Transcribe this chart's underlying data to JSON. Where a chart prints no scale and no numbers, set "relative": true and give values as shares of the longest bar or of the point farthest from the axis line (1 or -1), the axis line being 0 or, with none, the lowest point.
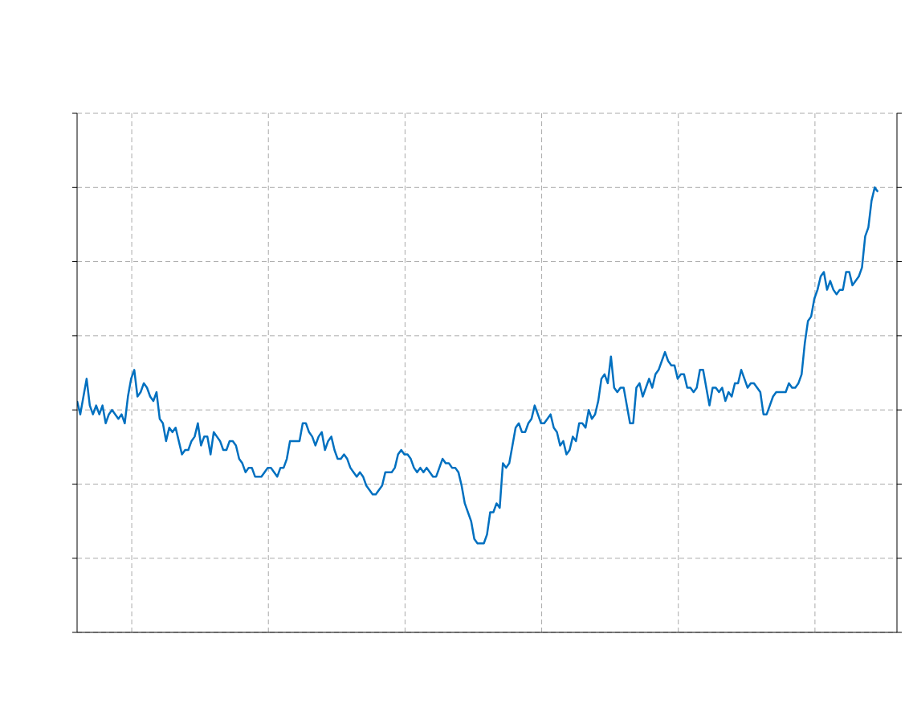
{
  "chart_data": {
    "type": "line",
    "relative": true,
    "grid": true,
    "marker": "none",
    "line_style": "solid",
    "categories": [
      null,
      null,
      null,
      null,
      null,
      null,
      null,
      null,
      null,
      null,
      null,
      null,
      null,
      null,
      null,
      null,
      null,
      null,
      null,
      null,
      null,
      null,
      null,
      null,
      null,
      null,
      null,
      null,
      null,
      null,
      null,
      null,
      null,
      null,
      null,
      null,
      null,
      null,
      null,
      null,
      null,
      null,
      null,
      null,
      null,
      null,
      null,
      null,
      null,
      null,
      null,
      null,
      null,
      null,
      null,
      null,
      null,
      null,
      null,
      null,
      null,
      null,
      null,
      null,
      null,
      null,
      null,
      null,
      null,
      null,
      null,
      null,
      null,
      null,
      null,
      null,
      null,
      null,
      null,
      null,
      null,
      null,
      null,
      null,
      null,
      null,
      null,
      null,
      null,
      null,
      null,
      null,
      null,
      null,
      null,
      null,
      null,
      null,
      null,
      null,
      null,
      null,
      null,
      null,
      null,
      null,
      null,
      null,
      null,
      null,
      null,
      null,
      null,
      null,
      null,
      null,
      null,
      null,
      null,
      null,
      null,
      null,
      null,
      null,
      null,
      null,
      null,
      null,
      null,
      null,
      null,
      null,
      null,
      null,
      null,
      null,
      null,
      null,
      null,
      null,
      null,
      null,
      null,
      null,
      null,
      null,
      null,
      null,
      null,
      null,
      null,
      null,
      null,
      null,
      null,
      null,
      null,
      null,
      null,
      null,
      null,
      null,
      null,
      null,
      null,
      null,
      null,
      null,
      null,
      null,
      null,
      null,
      null,
      null,
      null,
      null,
      null,
      null,
      null,
      null,
      null,
      null,
      null,
      null,
      null,
      null,
      null,
      null,
      null,
      null,
      null,
      null,
      null,
      null,
      null,
      null,
      null,
      null,
      null,
      null,
      null,
      null,
      null,
      null,
      null,
      null,
      null,
      null,
      null,
      null,
      null,
      null,
      null,
      null,
      null,
      null,
      null,
      null,
      null,
      null,
      null,
      null,
      null,
      null,
      null,
      null,
      null,
      null,
      null,
      null,
      null,
      null,
      null,
      null,
      null,
      null,
      null,
      null,
      null,
      null,
      null,
      null,
      null,
      null,
      null,
      null,
      null,
      null,
      null,
      null,
      null,
      null,
      null,
      null,
      null,
      null,
      null,
      null,
      null
    ],
    "series": [
      {
        "color": "#0070c0",
        "values": [
          0.52,
          0.49,
          0.53,
          0.57,
          0.51,
          0.49,
          0.51,
          0.49,
          0.51,
          0.47,
          0.49,
          0.5,
          0.49,
          0.48,
          0.49,
          0.47,
          0.53,
          0.57,
          0.59,
          0.53,
          0.54,
          0.56,
          0.55,
          0.53,
          0.52,
          0.54,
          0.48,
          0.47,
          0.43,
          0.46,
          0.45,
          0.46,
          0.43,
          0.4,
          0.41,
          0.41,
          0.43,
          0.44,
          0.47,
          0.42,
          0.44,
          0.44,
          0.4,
          0.45,
          0.44,
          0.43,
          0.41,
          0.41,
          0.43,
          0.43,
          0.42,
          0.39,
          0.38,
          0.36,
          0.37,
          0.37,
          0.35,
          0.35,
          0.35,
          0.36,
          0.37,
          0.37,
          0.36,
          0.35,
          0.37,
          0.37,
          0.39,
          0.43,
          0.43,
          0.43,
          0.43,
          0.47,
          0.47,
          0.45,
          0.44,
          0.42,
          0.44,
          0.45,
          0.41,
          0.43,
          0.44,
          0.41,
          0.39,
          0.39,
          0.4,
          0.39,
          0.37,
          0.36,
          0.35,
          0.36,
          0.35,
          0.33,
          0.32,
          0.31,
          0.31,
          0.32,
          0.33,
          0.36,
          0.36,
          0.36,
          0.37,
          0.4,
          0.41,
          0.4,
          0.4,
          0.39,
          0.37,
          0.36,
          0.37,
          0.36,
          0.37,
          0.36,
          0.35,
          0.35,
          0.37,
          0.39,
          0.38,
          0.38,
          0.37,
          0.37,
          0.36,
          0.33,
          0.29,
          0.27,
          0.25,
          0.21,
          0.2,
          0.2,
          0.2,
          0.22,
          0.27,
          0.27,
          0.29,
          0.28,
          0.38,
          0.37,
          0.38,
          0.42,
          0.46,
          0.47,
          0.45,
          0.45,
          0.47,
          0.48,
          0.51,
          0.49,
          0.47,
          0.47,
          0.48,
          0.49,
          0.46,
          0.45,
          0.42,
          0.43,
          0.4,
          0.41,
          0.44,
          0.43,
          0.47,
          0.47,
          0.46,
          0.5,
          0.48,
          0.49,
          0.52,
          0.57,
          0.58,
          0.56,
          0.62,
          0.55,
          0.54,
          0.55,
          0.55,
          0.51,
          0.47,
          0.47,
          0.55,
          0.56,
          0.53,
          0.55,
          0.57,
          0.55,
          0.58,
          0.59,
          0.61,
          0.63,
          0.61,
          0.6,
          0.6,
          0.57,
          0.58,
          0.58,
          0.55,
          0.55,
          0.54,
          0.55,
          0.59,
          0.59,
          0.55,
          0.51,
          0.55,
          0.55,
          0.54,
          0.55,
          0.52,
          0.54,
          0.53,
          0.56,
          0.56,
          0.59,
          0.57,
          0.55,
          0.56,
          0.56,
          0.55,
          0.54,
          0.49,
          0.49,
          0.51,
          0.53,
          0.54,
          0.54,
          0.54,
          0.54,
          0.56,
          0.55,
          0.55,
          0.56,
          0.58,
          0.65,
          0.7,
          0.71,
          0.75,
          0.77,
          0.8,
          0.81,
          0.77,
          0.79,
          0.77,
          0.76,
          0.77,
          0.77,
          0.81,
          0.81,
          0.78,
          0.79,
          0.8,
          0.82,
          0.89,
          0.91,
          0.97,
          1,
          0.99,
          null,
          null,
          null,
          null,
          null,
          null
        ]
      }
    ]
  }
}
